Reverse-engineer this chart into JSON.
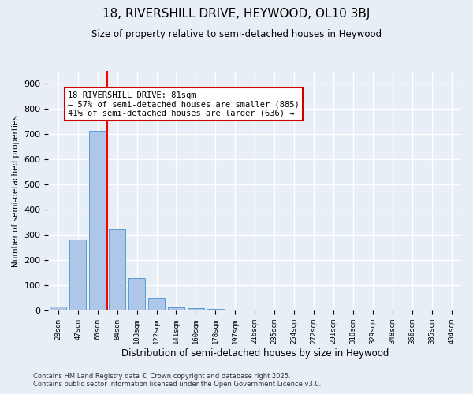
{
  "title1": "18, RIVERSHILL DRIVE, HEYWOOD, OL10 3BJ",
  "title2": "Size of property relative to semi-detached houses in Heywood",
  "xlabel": "Distribution of semi-detached houses by size in Heywood",
  "ylabel": "Number of semi-detached properties",
  "categories": [
    "28sqm",
    "47sqm",
    "66sqm",
    "84sqm",
    "103sqm",
    "122sqm",
    "141sqm",
    "160sqm",
    "178sqm",
    "197sqm",
    "216sqm",
    "235sqm",
    "254sqm",
    "272sqm",
    "291sqm",
    "310sqm",
    "329sqm",
    "348sqm",
    "366sqm",
    "385sqm",
    "404sqm"
  ],
  "values": [
    18,
    282,
    713,
    322,
    128,
    52,
    14,
    10,
    7,
    3,
    0,
    0,
    0,
    5,
    0,
    0,
    0,
    0,
    0,
    0,
    0
  ],
  "bar_color": "#aec6e8",
  "bar_edge_color": "#5b9bd5",
  "red_line_x": 2.5,
  "annotation_title": "18 RIVERSHILL DRIVE: 81sqm",
  "annotation_line1": "← 57% of semi-detached houses are smaller (885)",
  "annotation_line2": "41% of semi-detached houses are larger (636) →",
  "annotation_box_color": "#ffffff",
  "annotation_box_edge": "#cc0000",
  "ylim": [
    0,
    950
  ],
  "yticks": [
    0,
    100,
    200,
    300,
    400,
    500,
    600,
    700,
    800,
    900
  ],
  "background_color": "#e8eef5",
  "grid_color": "#ffffff",
  "footer1": "Contains HM Land Registry data © Crown copyright and database right 2025.",
  "footer2": "Contains public sector information licensed under the Open Government Licence v3.0."
}
